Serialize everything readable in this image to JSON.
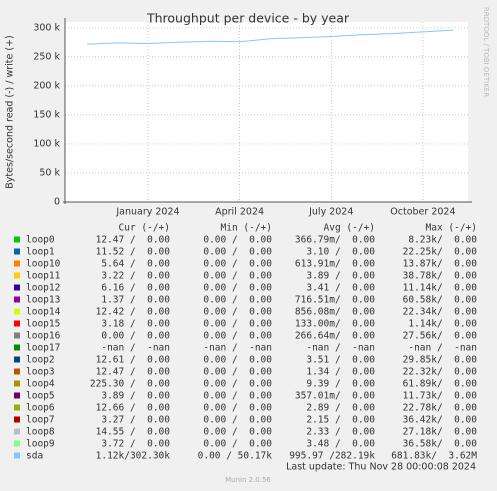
{
  "chart_data": {
    "type": "line",
    "title": "Throughput per device - by year",
    "y_label": "Bytes/second read (-) / write (+)",
    "side_note": "RRDTOOL / TOBI OETIKER",
    "footer": "Last update: Thu Nov 28 00:00:08 2024",
    "version": "Munin 2.0.56",
    "ylim": [
      0,
      310000
    ],
    "yticks": [
      {
        "value": 0,
        "label": "0"
      },
      {
        "value": 50000,
        "label": "50 k"
      },
      {
        "value": 100000,
        "label": "100 k"
      },
      {
        "value": 150000,
        "label": "150 k"
      },
      {
        "value": 200000,
        "label": "200 k"
      },
      {
        "value": 250000,
        "label": "250 k"
      },
      {
        "value": 300000,
        "label": "300 k"
      }
    ],
    "xlim": [
      "2023-10",
      "2024-12"
    ],
    "xticks": [
      {
        "value": "2024-01",
        "label": "January 2024"
      },
      {
        "value": "2024-04",
        "label": "April 2024"
      },
      {
        "value": "2024-07",
        "label": "July 2024"
      },
      {
        "value": "2024-10",
        "label": "October 2024"
      }
    ],
    "grid": true,
    "x": [
      "2023-11",
      "2023-12",
      "2024-01",
      "2024-02",
      "2024-03",
      "2024-04",
      "2024-05",
      "2024-06",
      "2024-07",
      "2024-08",
      "2024-09",
      "2024-10",
      "2024-11"
    ],
    "columns": [
      "Cur (-/+)",
      "Min (-/+)",
      "Avg (-/+)",
      "Max (-/+)"
    ],
    "series": [
      {
        "name": "loop0",
        "color": "#00cc00",
        "stats": [
          "12.47 /  0.00",
          "0.00 /  0.00",
          "366.79m/  0.00",
          "8.23k/  0.00"
        ]
      },
      {
        "name": "loop1",
        "color": "#0066b3",
        "stats": [
          "11.52 /  0.00",
          "0.00 /  0.00",
          "3.10 /  0.00",
          "22.25k/  0.00"
        ]
      },
      {
        "name": "loop10",
        "color": "#ff8000",
        "stats": [
          "5.64 /  0.00",
          "0.00 /  0.00",
          "613.91m/  0.00",
          "13.87k/  0.00"
        ]
      },
      {
        "name": "loop11",
        "color": "#ffcc00",
        "stats": [
          "3.22 /  0.00",
          "0.00 /  0.00",
          "3.89 /  0.00",
          "38.78k/  0.00"
        ]
      },
      {
        "name": "loop12",
        "color": "#330099",
        "stats": [
          "6.16 /  0.00",
          "0.00 /  0.00",
          "3.41 /  0.00",
          "11.14k/  0.00"
        ]
      },
      {
        "name": "loop13",
        "color": "#990099",
        "stats": [
          "1.37 /  0.00",
          "0.00 /  0.00",
          "716.51m/  0.00",
          "60.58k/  0.00"
        ]
      },
      {
        "name": "loop14",
        "color": "#ccff00",
        "stats": [
          "12.42 /  0.00",
          "0.00 /  0.00",
          "856.08m/  0.00",
          "22.34k/  0.00"
        ]
      },
      {
        "name": "loop15",
        "color": "#ff0000",
        "stats": [
          "3.18 /  0.00",
          "0.00 /  0.00",
          "133.00m/  0.00",
          "1.14k/  0.00"
        ]
      },
      {
        "name": "loop16",
        "color": "#808080",
        "stats": [
          "0.00 /  0.00",
          "0.00 /  0.00",
          "266.64m/  0.00",
          "27.56k/  0.00"
        ]
      },
      {
        "name": "loop17",
        "color": "#008f00",
        "stats": [
          "-nan /  -nan",
          "-nan /  -nan",
          "-nan /  -nan",
          "-nan /  -nan"
        ]
      },
      {
        "name": "loop2",
        "color": "#00487d",
        "stats": [
          "12.61 /  0.00",
          "0.00 /  0.00",
          "3.51 /  0.00",
          "29.85k/  0.00"
        ]
      },
      {
        "name": "loop3",
        "color": "#b35a00",
        "stats": [
          "12.47 /  0.00",
          "0.00 /  0.00",
          "1.34 /  0.00",
          "22.32k/  0.00"
        ]
      },
      {
        "name": "loop4",
        "color": "#b38f00",
        "stats": [
          "225.30 /  0.00",
          "0.00 /  0.00",
          "9.39 /  0.00",
          "61.89k/  0.00"
        ]
      },
      {
        "name": "loop5",
        "color": "#6b006b",
        "stats": [
          "3.89 /  0.00",
          "0.00 /  0.00",
          "357.01m/  0.00",
          "11.73k/  0.00"
        ]
      },
      {
        "name": "loop6",
        "color": "#8fb300",
        "stats": [
          "12.66 /  0.00",
          "0.00 /  0.00",
          "2.89 /  0.00",
          "22.78k/  0.00"
        ]
      },
      {
        "name": "loop7",
        "color": "#b30000",
        "stats": [
          "3.27 /  0.00",
          "0.00 /  0.00",
          "2.15 /  0.00",
          "36.42k/  0.00"
        ]
      },
      {
        "name": "loop8",
        "color": "#bebebe",
        "stats": [
          "14.55 /  0.00",
          "0.00 /  0.00",
          "2.33 /  0.00",
          "27.18k/  0.00"
        ]
      },
      {
        "name": "loop9",
        "color": "#80ff80",
        "stats": [
          "3.72 /  0.00",
          "0.00 /  0.00",
          "3.48 /  0.00",
          "36.58k/  0.00"
        ]
      },
      {
        "name": "sda",
        "color": "#80c9ff",
        "stats": [
          "1.12k/302.30k",
          "0.00 / 50.17k",
          "995.97 /282.19k",
          "681.83k/  3.62M"
        ],
        "values": [
          272000,
          274000,
          273000,
          275000,
          277000,
          276000,
          281000,
          283000,
          285000,
          288000,
          290000,
          293000,
          296000
        ]
      }
    ]
  }
}
